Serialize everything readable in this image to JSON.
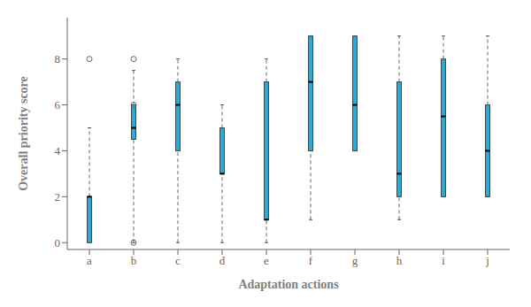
{
  "chart_data": {
    "type": "box",
    "xlabel": "Adaptation actions",
    "ylabel": "Overall priority score",
    "categories": [
      "a",
      "b",
      "c",
      "d",
      "e",
      "f",
      "g",
      "h",
      "i",
      "j"
    ],
    "boxes": [
      {
        "q1": 0,
        "median": 2,
        "q3": 2,
        "whisker_low": 0,
        "whisker_high": 5,
        "outliers": [
          8
        ]
      },
      {
        "q1": 4.5,
        "median": 5,
        "q3": 6,
        "whisker_low": 0,
        "whisker_high": 7.5,
        "outliers": [
          0,
          6,
          8
        ]
      },
      {
        "q1": 4,
        "median": 6,
        "q3": 7,
        "whisker_low": 0,
        "whisker_high": 8,
        "outliers": []
      },
      {
        "q1": 3,
        "median": 3,
        "q3": 5,
        "whisker_low": 0,
        "whisker_high": 6,
        "outliers": []
      },
      {
        "q1": 1,
        "median": 1,
        "q3": 7,
        "whisker_low": 0,
        "whisker_high": 8,
        "outliers": []
      },
      {
        "q1": 4,
        "median": 7,
        "q3": 9,
        "whisker_low": 1,
        "whisker_high": 9,
        "outliers": []
      },
      {
        "q1": 4,
        "median": 6,
        "q3": 9,
        "whisker_low": 4,
        "whisker_high": 9,
        "outliers": []
      },
      {
        "q1": 2,
        "median": 3,
        "q3": 7,
        "whisker_low": 1,
        "whisker_high": 9,
        "outliers": []
      },
      {
        "q1": 2,
        "median": 5.5,
        "q3": 8,
        "whisker_low": 2,
        "whisker_high": 9,
        "outliers": []
      },
      {
        "q1": 2,
        "median": 4,
        "q3": 6,
        "whisker_low": 2,
        "whisker_high": 9,
        "outliers": []
      }
    ],
    "color": "#29ABD4",
    "ylim": [
      -0.3,
      9.8
    ],
    "yticks": [
      0,
      2,
      4,
      6,
      8
    ]
  }
}
